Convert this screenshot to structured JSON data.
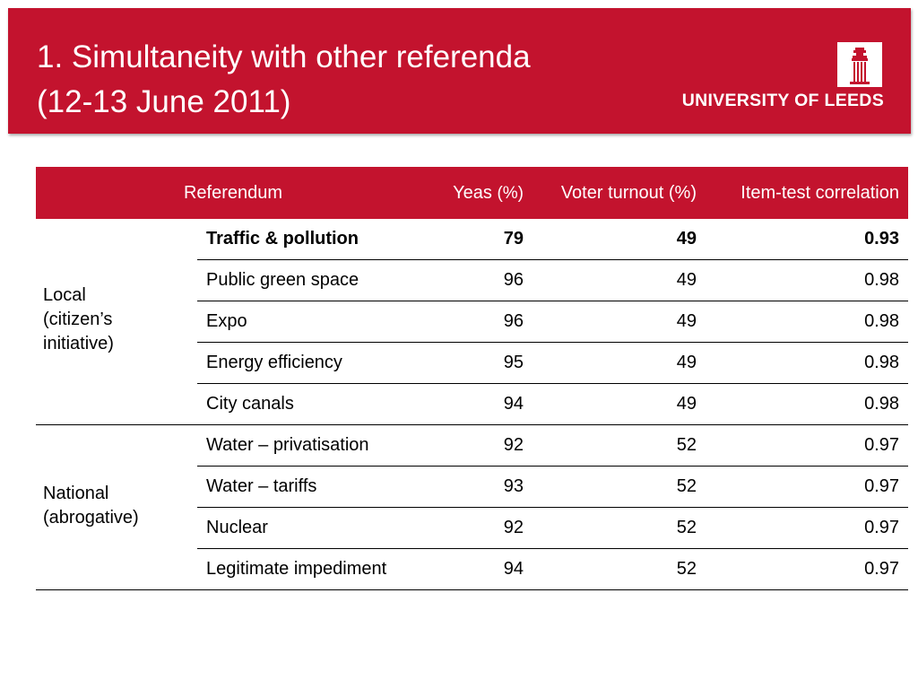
{
  "title": {
    "line1": "1. Simultaneity with other referenda",
    "line2": "(12-13 June 2011)"
  },
  "logo": {
    "text": "UNIVERSITY OF LEEDS",
    "icon": "university-tower-icon"
  },
  "colors": {
    "brand_red": "#c3132e",
    "text": "#000000",
    "header_text": "#ffffff"
  },
  "table": {
    "headers": {
      "referendum": "Referendum",
      "yeas": "Yeas",
      "yeas_unit": "(%)",
      "turnout": "Voter turnout (%)",
      "correlation": "Item-test correlation"
    },
    "groups": [
      {
        "label_lines": [
          "Local",
          "(citizen’s",
          "initiative)"
        ],
        "rows": [
          {
            "name": "Traffic & pollution",
            "yeas": "79",
            "turnout": "49",
            "correlation": "0.93",
            "bold": true
          },
          {
            "name": "Public green space",
            "yeas": "96",
            "turnout": "49",
            "correlation": "0.98",
            "bold": false
          },
          {
            "name": "Expo",
            "yeas": "96",
            "turnout": "49",
            "correlation": "0.98",
            "bold": false
          },
          {
            "name": "Energy efficiency",
            "yeas": "95",
            "turnout": "49",
            "correlation": "0.98",
            "bold": false
          },
          {
            "name": "City canals",
            "yeas": "94",
            "turnout": "49",
            "correlation": "0.98",
            "bold": false
          }
        ]
      },
      {
        "label_lines": [
          "National",
          "(abrogative)"
        ],
        "rows": [
          {
            "name": "Water – privatisation",
            "yeas": "92",
            "turnout": "52",
            "correlation": "0.97",
            "bold": false
          },
          {
            "name": "Water – tariffs",
            "yeas": "93",
            "turnout": "52",
            "correlation": "0.97",
            "bold": false
          },
          {
            "name": "Nuclear",
            "yeas": "92",
            "turnout": "52",
            "correlation": "0.97",
            "bold": false
          },
          {
            "name": "Legitimate impediment",
            "yeas": "94",
            "turnout": "52",
            "correlation": "0.97",
            "bold": false
          }
        ]
      }
    ]
  }
}
